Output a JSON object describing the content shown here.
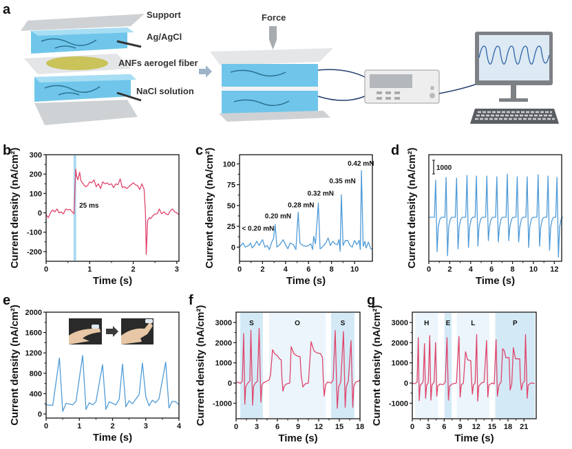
{
  "figure": {
    "panel_letters": [
      "a",
      "b",
      "c",
      "d",
      "e",
      "f",
      "g"
    ],
    "schematic": {
      "support_label": "Support",
      "electrode_label": "Ag/AgCl",
      "fiber_label": "ANFs aerogel fiber",
      "solution_label": "NaCl solution",
      "force_label": "Force"
    },
    "colors": {
      "red": "#e0436a",
      "blue": "#4f9ad6",
      "shade_dark": "#d3eaf6",
      "shade_light": "#ebf5fb"
    }
  },
  "chart_data": [
    {
      "id": "b",
      "type": "line",
      "color": "#e0436a",
      "xlabel": "Time (s)",
      "ylabel": "Current density (nA/cm²)",
      "xlim": [
        0,
        3.05
      ],
      "ylim": [
        -250,
        300
      ],
      "xticks": [
        0,
        1,
        2,
        3
      ],
      "yticks": [
        -200,
        -100,
        0,
        100,
        200,
        300
      ],
      "shaded": [
        {
          "x0": 0.63,
          "x1": 0.69,
          "tone": "mid"
        }
      ],
      "annotations": [
        {
          "text": "25 ms",
          "x": 0.76,
          "y": 41
        }
      ],
      "points": [
        0,
        -10,
        0.05,
        -25,
        0.1,
        0,
        0.15,
        15,
        0.2,
        5,
        0.25,
        20,
        0.3,
        0,
        0.35,
        5,
        0.4,
        -5,
        0.45,
        20,
        0.5,
        15,
        0.55,
        18,
        0.6,
        5,
        0.64,
        -5,
        0.68,
        225,
        0.7,
        190,
        0.73,
        170,
        0.77,
        210,
        0.8,
        165,
        0.85,
        150,
        0.9,
        135,
        0.95,
        140,
        1.0,
        160,
        1.05,
        155,
        1.1,
        170,
        1.15,
        135,
        1.2,
        150,
        1.25,
        125,
        1.3,
        160,
        1.35,
        150,
        1.4,
        155,
        1.45,
        145,
        1.5,
        150,
        1.55,
        130,
        1.6,
        150,
        1.65,
        145,
        1.7,
        175,
        1.75,
        130,
        1.8,
        135,
        1.85,
        125,
        1.9,
        135,
        1.95,
        145,
        2.0,
        155,
        2.05,
        145,
        2.1,
        140,
        2.15,
        120,
        2.2,
        150,
        2.25,
        120,
        2.28,
        0,
        2.3,
        -215,
        2.33,
        -40,
        2.37,
        -25,
        2.4,
        -30,
        2.45,
        -15,
        2.5,
        -5,
        2.55,
        -5,
        2.6,
        20,
        2.65,
        -5,
        2.7,
        5,
        2.75,
        -5,
        2.8,
        -10,
        2.85,
        10,
        2.9,
        20,
        2.95,
        5,
        3.0,
        0,
        3.05,
        -10
      ]
    },
    {
      "id": "c",
      "type": "line",
      "color": "#4f9ad6",
      "xlabel": "Time (s)",
      "ylabel": "Current density (nA/cm²)",
      "xlim": [
        0,
        11.55
      ],
      "ylim": [
        -17,
        111
      ],
      "xticks": [
        0,
        2,
        4,
        6,
        8,
        10
      ],
      "yticks": [
        0,
        25,
        50,
        75,
        100
      ],
      "annotations": [
        {
          "text": "< 0.20 mN",
          "x": 0.2,
          "y": 23
        },
        {
          "text": "0.20 mN",
          "x": 2.2,
          "y": 38
        },
        {
          "text": "0.28 mN",
          "x": 4.2,
          "y": 51
        },
        {
          "text": "0.32 mN",
          "x": 5.9,
          "y": 65
        },
        {
          "text": "0.35 mN",
          "x": 7.8,
          "y": 80
        },
        {
          "text": "0.42 mN",
          "x": 9.4,
          "y": 101
        }
      ],
      "points": [
        0,
        0,
        0.3,
        5,
        0.5,
        0,
        0.8,
        2,
        0.95,
        5,
        1.1,
        -1,
        1.3,
        2,
        1.5,
        7,
        1.7,
        2,
        2.0,
        9,
        2.2,
        0,
        2.4,
        2,
        2.6,
        -3,
        2.8,
        6,
        2.95,
        10,
        3.1,
        27,
        3.25,
        0,
        3.5,
        3,
        3.8,
        9,
        4.0,
        3,
        4.2,
        -2,
        4.4,
        5,
        4.7,
        3,
        4.9,
        -3,
        5.1,
        42,
        5.25,
        5,
        5.5,
        2,
        5.8,
        1,
        6.0,
        2,
        6.2,
        4,
        6.35,
        -3,
        6.45,
        13,
        6.6,
        4,
        6.85,
        53,
        7.0,
        -2,
        7.2,
        0,
        7.5,
        5,
        7.7,
        11,
        7.9,
        2,
        8.1,
        7,
        8.3,
        4,
        8.5,
        3,
        8.65,
        9,
        8.75,
        -5,
        8.85,
        63,
        9.0,
        2,
        9.2,
        8,
        9.4,
        8,
        9.6,
        2,
        9.8,
        0,
        10.0,
        8,
        10.2,
        3,
        10.4,
        8,
        10.5,
        -3,
        10.6,
        92,
        10.75,
        1,
        10.9,
        7,
        11.0,
        -1,
        11.2,
        6,
        11.4,
        -2,
        11.55,
        -2
      ]
    },
    {
      "id": "d",
      "type": "line",
      "color": "#4f9ad6",
      "xlabel": "Time (s)",
      "ylabel": "Current density (nA/cm²)",
      "xlim": [
        0,
        12.7
      ],
      "ylim": [
        -3200,
        4550
      ],
      "xticks": [
        0,
        2,
        4,
        6,
        8,
        10,
        12
      ],
      "yticks": [],
      "scale_bar": {
        "label": "1000",
        "value": 1000
      },
      "pulses": [
        {
          "t": 0.65,
          "peak": 2700,
          "trough": -2500
        },
        {
          "t": 1.65,
          "peak": 2900,
          "trough": -2800
        },
        {
          "t": 2.65,
          "peak": 2850,
          "trough": -2300
        },
        {
          "t": 3.65,
          "peak": 3050,
          "trough": -2200
        },
        {
          "t": 4.55,
          "peak": 3000,
          "trough": -2100
        },
        {
          "t": 5.55,
          "peak": 3000,
          "trough": -1700
        },
        {
          "t": 6.5,
          "peak": 2950,
          "trough": -1800
        },
        {
          "t": 7.5,
          "peak": 3150,
          "trough": -1700
        },
        {
          "t": 8.45,
          "peak": 2950,
          "trough": -1800
        },
        {
          "t": 9.4,
          "peak": 2950,
          "trough": -2200
        },
        {
          "t": 10.45,
          "peak": 3100,
          "trough": -2100
        },
        {
          "t": 11.4,
          "peak": 3000,
          "trough": -2400
        },
        {
          "t": 12.25,
          "peak": 2900,
          "trough": -2900
        }
      ]
    },
    {
      "id": "e",
      "type": "line",
      "color": "#4f9ad6",
      "xlabel": "Time (s)",
      "ylabel": "Current density (nA/cm²)",
      "xlim": [
        0,
        4
      ],
      "ylim": [
        -80,
        2000
      ],
      "xticks": [
        0,
        1,
        2,
        3,
        4
      ],
      "yticks": [
        0,
        400,
        800,
        1200,
        1600,
        2000
      ],
      "points": [
        0,
        180,
        0.2,
        170,
        0.4,
        1100,
        0.5,
        50,
        0.6,
        210,
        0.8,
        180,
        0.9,
        250,
        1.1,
        1150,
        1.2,
        90,
        1.3,
        220,
        1.4,
        180,
        1.5,
        240,
        1.7,
        970,
        1.8,
        90,
        1.9,
        240,
        2.0,
        210,
        2.1,
        180,
        2.2,
        290,
        2.3,
        980,
        2.4,
        140,
        2.5,
        260,
        2.6,
        200,
        2.8,
        380,
        2.9,
        1000,
        3.0,
        340,
        3.1,
        160,
        3.2,
        270,
        3.3,
        220,
        3.4,
        300,
        3.6,
        1020,
        3.7,
        120,
        3.8,
        250,
        3.9,
        240,
        4.0,
        180
      ]
    },
    {
      "id": "f",
      "type": "line",
      "color": "#e0436a",
      "xlabel": "Time (s)",
      "ylabel": "Current density (nA/cm²)",
      "xlim": [
        0,
        18
      ],
      "ylim": [
        -1770,
        3510
      ],
      "xticks": [
        0,
        3,
        6,
        9,
        12,
        15,
        18
      ],
      "yticks": [
        -1000,
        0,
        1000,
        2000,
        3000
      ],
      "shaded": [
        {
          "x0": 0.6,
          "x1": 3.9,
          "tone": "dark",
          "label": "S"
        },
        {
          "x0": 4.8,
          "x1": 13.0,
          "tone": "light",
          "label": "O"
        },
        {
          "x0": 13.8,
          "x1": 17.2,
          "tone": "dark",
          "label": "S"
        }
      ],
      "points": [
        0,
        0,
        0.3,
        50,
        0.6,
        -30,
        0.9,
        100,
        1.1,
        2450,
        1.27,
        -1050,
        1.4,
        -200,
        1.6,
        -50,
        1.8,
        30,
        2.0,
        100,
        2.15,
        2600,
        2.4,
        -1100,
        2.55,
        -150,
        2.8,
        0,
        3.1,
        80,
        3.35,
        2700,
        3.6,
        -950,
        3.75,
        -100,
        4.0,
        20,
        4.4,
        80,
        4.8,
        150,
        5.0,
        400,
        5.3,
        1650,
        5.6,
        1450,
        6.0,
        1350,
        6.3,
        1200,
        6.55,
        1150,
        6.65,
        300,
        6.8,
        -400,
        7.0,
        -150,
        7.3,
        -50,
        7.8,
        0,
        8.0,
        1800,
        8.4,
        1450,
        8.8,
        1350,
        9.3,
        1300,
        9.45,
        400,
        9.7,
        -200,
        10.0,
        -50,
        10.5,
        0,
        10.9,
        2050,
        11.3,
        1600,
        11.7,
        1500,
        12.3,
        1450,
        12.55,
        1250,
        12.65,
        300,
        12.8,
        -650,
        13.0,
        -100,
        13.3,
        50,
        13.8,
        0,
        14.1,
        150,
        14.4,
        2600,
        14.7,
        -1250,
        14.9,
        -200,
        15.2,
        50,
        15.6,
        2550,
        15.85,
        -1200,
        16.0,
        -200,
        16.3,
        100,
        16.7,
        2100,
        16.95,
        -1200,
        17.1,
        -150,
        17.4,
        50,
        17.8,
        100,
        18.0,
        150
      ]
    },
    {
      "id": "g",
      "type": "line",
      "color": "#e0436a",
      "xlabel": "Time (s)",
      "ylabel": "Current density (nA/cm²)",
      "xlim": [
        0,
        23.3
      ],
      "ylim": [
        -1770,
        3510
      ],
      "xticks": [
        0,
        3,
        6,
        9,
        12,
        15,
        18,
        21
      ],
      "yticks": [
        -1000,
        0,
        1000,
        2000,
        3000
      ],
      "shaded": [
        {
          "x0": 0.56,
          "x1": 4.8,
          "tone": "light",
          "label": "H"
        },
        {
          "x0": 6.05,
          "x1": 7.4,
          "tone": "dark",
          "label": "E"
        },
        {
          "x0": 8.35,
          "x1": 14.5,
          "tone": "light",
          "label": "L"
        },
        {
          "x0": 15.6,
          "x1": 23.05,
          "tone": "dark",
          "label": "P"
        }
      ],
      "points": [
        0,
        -20,
        0.5,
        -30,
        0.9,
        50,
        1.13,
        2250,
        1.3,
        -870,
        1.5,
        -100,
        1.9,
        0,
        2.05,
        100,
        2.29,
        1950,
        2.5,
        -760,
        2.7,
        -100,
        3.0,
        0,
        3.28,
        2350,
        3.5,
        -850,
        3.7,
        -100,
        4.1,
        50,
        4.37,
        2000,
        4.6,
        -650,
        4.8,
        -150,
        5.2,
        -50,
        5.8,
        -80,
        6.2,
        50,
        6.52,
        2250,
        6.8,
        -850,
        7.0,
        -150,
        7.5,
        -50,
        8.3,
        0,
        8.78,
        2300,
        9.0,
        -700,
        9.2,
        -100,
        9.6,
        0,
        10.0,
        1550,
        10.4,
        1150,
        11.0,
        1100,
        11.1,
        300,
        11.3,
        -550,
        11.5,
        -100,
        11.8,
        0,
        12.1,
        2400,
        12.3,
        -900,
        12.5,
        -150,
        13.0,
        0,
        13.5,
        50,
        13.97,
        2100,
        14.2,
        -700,
        14.4,
        -100,
        15.0,
        0,
        15.4,
        -50,
        15.75,
        2150,
        16.0,
        -650,
        16.3,
        -100,
        16.7,
        50,
        17.0,
        1700,
        17.3,
        1600,
        17.6,
        1250,
        18.2,
        1250,
        18.4,
        -350,
        18.7,
        -50,
        19.0,
        1750,
        19.4,
        1200,
        20.2,
        1200,
        20.3,
        300,
        20.5,
        -350,
        20.8,
        0,
        21.1,
        100,
        21.3,
        2400,
        21.6,
        -750,
        21.8,
        -100,
        22.3,
        0,
        23.0,
        -20
      ]
    }
  ]
}
